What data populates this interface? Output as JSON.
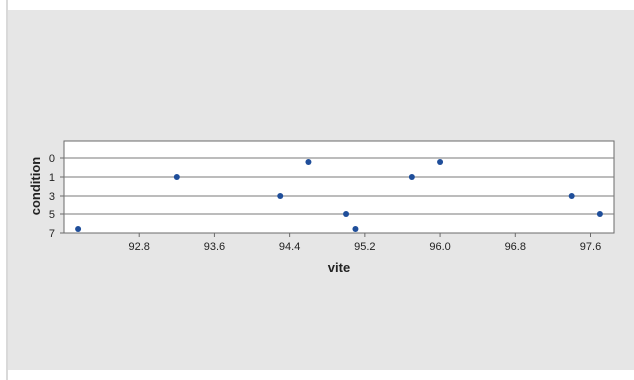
{
  "chart_data": {
    "type": "scatter",
    "xlabel": "vite",
    "ylabel": "condition",
    "xlim": [
      92.0,
      97.85
    ],
    "x_ticks": [
      "92.8",
      "93.6",
      "94.4",
      "95.2",
      "96.0",
      "96.8",
      "97.6"
    ],
    "y_ticks": [
      "0",
      "1",
      "3",
      "5",
      "7"
    ],
    "y_axis_inverted": true,
    "grid": "horizontal",
    "marker_color": "#1f4e9a",
    "points": [
      {
        "x": 92.15,
        "y": 7
      },
      {
        "x": 93.2,
        "y": 1
      },
      {
        "x": 94.3,
        "y": 3
      },
      {
        "x": 94.6,
        "y": 0
      },
      {
        "x": 95.0,
        "y": 5
      },
      {
        "x": 95.1,
        "y": 7
      },
      {
        "x": 95.7,
        "y": 1
      },
      {
        "x": 96.0,
        "y": 0
      },
      {
        "x": 97.4,
        "y": 3
      },
      {
        "x": 97.7,
        "y": 5
      }
    ]
  }
}
